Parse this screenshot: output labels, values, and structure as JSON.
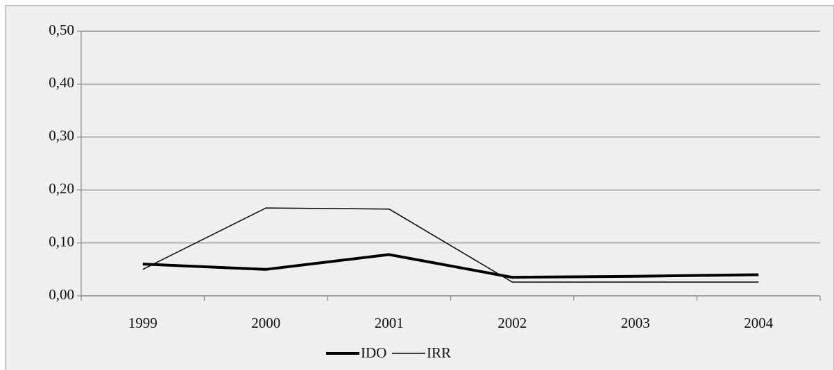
{
  "chart_data": {
    "type": "line",
    "categories": [
      "1999",
      "2000",
      "2001",
      "2002",
      "2003",
      "2004"
    ],
    "series": [
      {
        "name": "IDO",
        "color": "#000000",
        "values": [
          0.06,
          0.05,
          0.078,
          0.035,
          0.037,
          0.04
        ]
      },
      {
        "name": "IRR",
        "color": "#000000",
        "values": [
          0.05,
          0.166,
          0.164,
          0.026,
          0.026,
          0.026
        ]
      }
    ],
    "ylim": [
      0,
      0.5
    ],
    "yticks": [
      {
        "value": 0,
        "label": "0,00"
      },
      {
        "value": 0.1,
        "label": "0,10"
      },
      {
        "value": 0.2,
        "label": "0,20"
      },
      {
        "value": 0.3,
        "label": "0,30"
      },
      {
        "value": 0.4,
        "label": "0,40"
      },
      {
        "value": 0.5,
        "label": "0,50"
      }
    ],
    "grid": true,
    "legend": "bottom"
  }
}
